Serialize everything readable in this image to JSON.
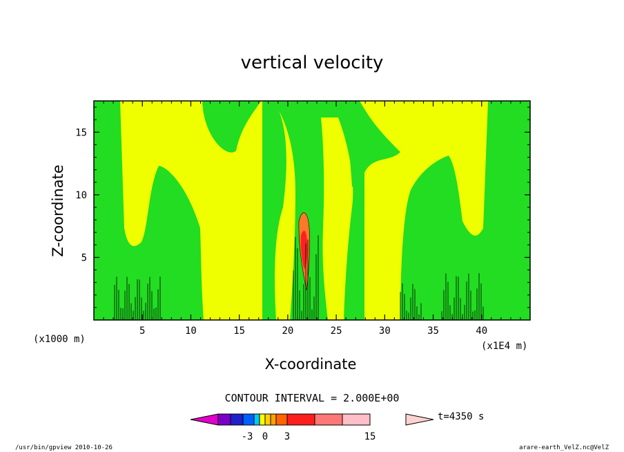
{
  "chart_data": {
    "type": "contour",
    "title": "vertical velocity",
    "xlabel": "X-coordinate",
    "ylabel": "Z-coordinate",
    "x_unit_label": "(x1000 m)",
    "x_scale_label": "(x1E4 m)",
    "xlim": [
      0,
      45
    ],
    "ylim": [
      0,
      17.5
    ],
    "x_ticks": [
      "5",
      "10",
      "15",
      "20",
      "25",
      "30",
      "35",
      "40"
    ],
    "y_ticks": [
      "5",
      "10",
      "15"
    ],
    "grid": false,
    "contour_interval_text": "CONTOUR INTERVAL = 2.000E+00",
    "time_label": "t=4350 s",
    "colorbar": {
      "labels": [
        "-3",
        "0",
        "3",
        "15"
      ],
      "colors": [
        "#e000c8",
        "#7a00c8",
        "#2020c8",
        "#0060ff",
        "#00c8ff",
        "#ffff00",
        "#ffd000",
        "#ffa000",
        "#ff6400",
        "#ff1e1e",
        "#ff7878",
        "#ffbec8",
        "#ffd2d2"
      ]
    },
    "fill_colors": {
      "green": "#22dd22",
      "yellow": "#f0ff00",
      "orange": "#ff7828",
      "red": "#ff2020",
      "blue": "#2020ff"
    },
    "footer_left": "/usr/bin/gpview  2010-10-26",
    "footer_right": "arare-earth_VelZ.nc@VelZ"
  }
}
